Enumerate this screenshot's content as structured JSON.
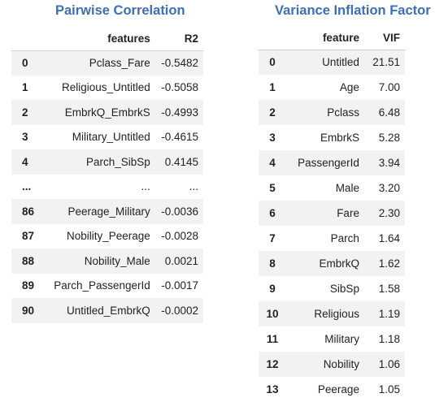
{
  "left": {
    "title": "Pairwise Correlation",
    "columns": [
      "",
      "features",
      "R2"
    ],
    "rows": [
      {
        "index": "0",
        "feature": "Pclass_Fare",
        "value": "-0.5482"
      },
      {
        "index": "1",
        "feature": "Religious_Untitled",
        "value": "-0.5058"
      },
      {
        "index": "2",
        "feature": "EmbrkQ_EmbrkS",
        "value": "-0.4993"
      },
      {
        "index": "3",
        "feature": "Military_Untitled",
        "value": "-0.4615"
      },
      {
        "index": "4",
        "feature": "Parch_SibSp",
        "value": "0.4145"
      },
      {
        "index": "...",
        "feature": "...",
        "value": "..."
      },
      {
        "index": "86",
        "feature": "Peerage_Military",
        "value": "-0.0036"
      },
      {
        "index": "87",
        "feature": "Nobility_Peerage",
        "value": "-0.0028"
      },
      {
        "index": "88",
        "feature": "Nobility_Male",
        "value": "0.0021"
      },
      {
        "index": "89",
        "feature": "Parch_PassengerId",
        "value": "-0.0017"
      },
      {
        "index": "90",
        "feature": "Untitled_EmbrkQ",
        "value": "-0.0002"
      }
    ]
  },
  "right": {
    "title": "Variance Inflation Factor",
    "columns": [
      "",
      "feature",
      "VIF"
    ],
    "rows": [
      {
        "index": "0",
        "feature": "Untitled",
        "value": "21.51"
      },
      {
        "index": "1",
        "feature": "Age",
        "value": "7.00"
      },
      {
        "index": "2",
        "feature": "Pclass",
        "value": "6.48"
      },
      {
        "index": "3",
        "feature": "EmbrkS",
        "value": "5.28"
      },
      {
        "index": "4",
        "feature": "PassengerId",
        "value": "3.94"
      },
      {
        "index": "5",
        "feature": "Male",
        "value": "3.20"
      },
      {
        "index": "6",
        "feature": "Fare",
        "value": "2.30"
      },
      {
        "index": "7",
        "feature": "Parch",
        "value": "1.64"
      },
      {
        "index": "8",
        "feature": "EmbrkQ",
        "value": "1.62"
      },
      {
        "index": "9",
        "feature": "SibSp",
        "value": "1.58"
      },
      {
        "index": "10",
        "feature": "Religious",
        "value": "1.19"
      },
      {
        "index": "11",
        "feature": "Military",
        "value": "1.18"
      },
      {
        "index": "12",
        "feature": "Nobility",
        "value": "1.06"
      },
      {
        "index": "13",
        "feature": "Peerage",
        "value": "1.05"
      }
    ]
  }
}
